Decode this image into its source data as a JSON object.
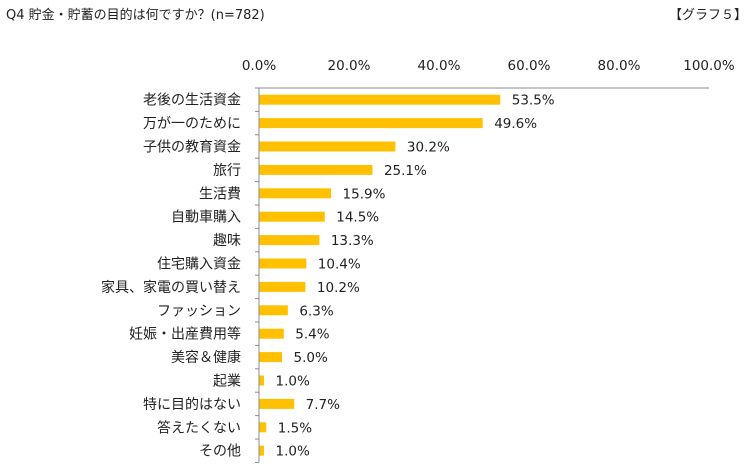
{
  "header": {
    "title": "Q4 貯金・貯蓄の目的は何ですか？(n=782)",
    "tag": "【グラフ５】"
  },
  "colors": {
    "bar": "#FFC000",
    "axis": "#8c8c8c"
  },
  "chart_data": {
    "type": "bar",
    "orientation": "horizontal",
    "title": "Q4 貯金・貯蓄の目的は何ですか？(n=782)",
    "xlim": [
      0,
      100
    ],
    "ticks": [
      "0.0%",
      "20.0%",
      "40.0%",
      "60.0%",
      "80.0%",
      "100.0%"
    ],
    "tick_values": [
      0,
      20,
      40,
      60,
      80,
      100
    ],
    "grid": false,
    "categories": [
      "老後の生活資金",
      "万が一のために",
      "子供の教育資金",
      "旅行",
      "生活費",
      "自動車購入",
      "趣味",
      "住宅購入資金",
      "家具、家電の買い替え",
      "ファッション",
      "妊娠・出産費用等",
      "美容＆健康",
      "起業",
      "特に目的はない",
      "答えたくない",
      "その他"
    ],
    "values": [
      53.5,
      49.6,
      30.2,
      25.1,
      15.9,
      14.5,
      13.3,
      10.4,
      10.2,
      6.3,
      5.4,
      5.0,
      1.0,
      7.7,
      1.5,
      1.0
    ],
    "data_labels": [
      "53.5%",
      "49.6%",
      "30.2%",
      "25.1%",
      "15.9%",
      "14.5%",
      "13.3%",
      "10.4%",
      "10.2%",
      "6.3%",
      "5.4%",
      "5.0%",
      "1.0%",
      "7.7%",
      "1.5%",
      "1.0%"
    ]
  }
}
